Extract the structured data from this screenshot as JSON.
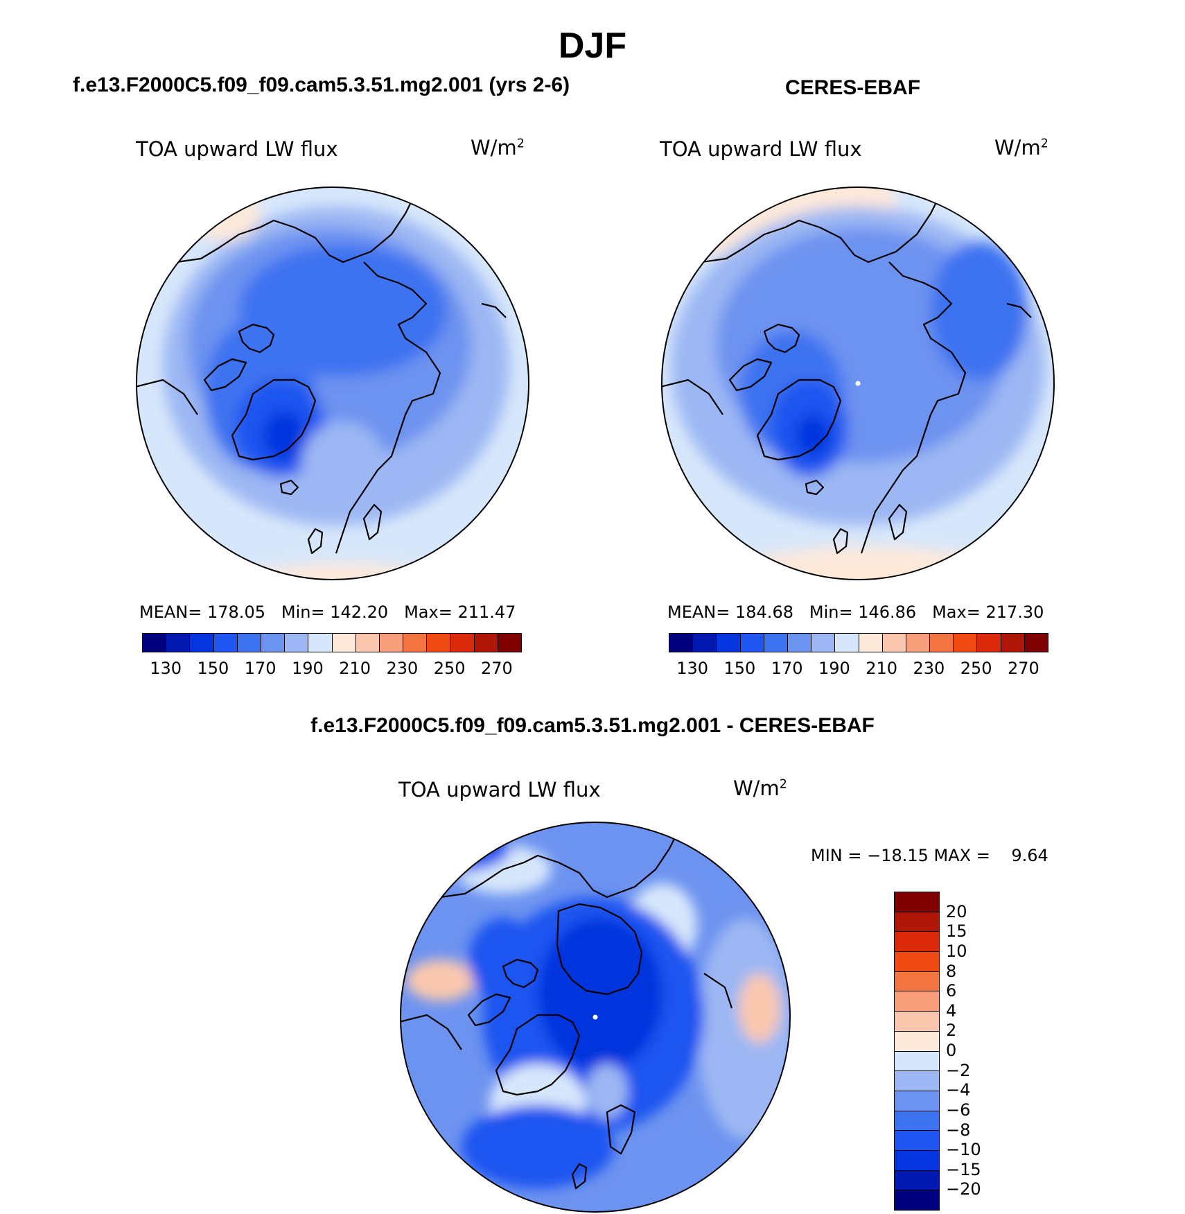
{
  "title": "DJF",
  "chart_data": [
    {
      "type": "heatmap",
      "projection": "north polar stereographic",
      "title": "f.e13.F2000C5.f09_f09.cam5.3.51.mg2.001 (yrs 2-6)",
      "variable": "TOA upward LW flux",
      "units": "W/m",
      "units_sup": "2",
      "stats": {
        "mean_label": "MEAN=",
        "mean": "178.05",
        "min_label": "Min=",
        "min": "142.20",
        "max_label": "Max=",
        "max": "211.47"
      },
      "colorbar": {
        "colors": [
          "#00007f",
          "#0019b0",
          "#0535de",
          "#1f55f0",
          "#3d72f0",
          "#6d93f0",
          "#9cb7f3",
          "#d7e7fb",
          "#fde9da",
          "#fac7ae",
          "#f79e7b",
          "#f2743e",
          "#ef4a12",
          "#d9290a",
          "#b01606",
          "#7f0000"
        ],
        "ticks": [
          "130",
          "150",
          "170",
          "190",
          "210",
          "230",
          "250",
          "270"
        ]
      }
    },
    {
      "type": "heatmap",
      "projection": "north polar stereographic",
      "title": "CERES-EBAF",
      "variable": "TOA upward LW flux",
      "units": "W/m",
      "units_sup": "2",
      "stats": {
        "mean_label": "MEAN=",
        "mean": "184.68",
        "min_label": "Min=",
        "min": "146.86",
        "max_label": "Max=",
        "max": "217.30"
      },
      "colorbar": {
        "colors": [
          "#00007f",
          "#0019b0",
          "#0535de",
          "#1f55f0",
          "#3d72f0",
          "#6d93f0",
          "#9cb7f3",
          "#d7e7fb",
          "#fde9da",
          "#fac7ae",
          "#f79e7b",
          "#f2743e",
          "#ef4a12",
          "#d9290a",
          "#b01606",
          "#7f0000"
        ],
        "ticks": [
          "130",
          "150",
          "170",
          "190",
          "210",
          "230",
          "250",
          "270"
        ]
      }
    },
    {
      "type": "heatmap",
      "projection": "north polar stereographic",
      "title": "f.e13.F2000C5.f09_f09.cam5.3.51.mg2.001 - CERES-EBAF",
      "variable": "TOA upward LW flux",
      "units": "W/m",
      "units_sup": "2",
      "minmax": "MIN = −18.15 MAX =    9.64",
      "colorbar": {
        "colors": [
          "#7f0000",
          "#b01606",
          "#d9290a",
          "#ef4a12",
          "#f2743e",
          "#f79e7b",
          "#fac7ae",
          "#fde9da",
          "#d7e7fb",
          "#9cb7f3",
          "#6d93f0",
          "#3d72f0",
          "#1f55f0",
          "#0535de",
          "#0019b0",
          "#00007f"
        ],
        "ticks": [
          "20",
          "15",
          "10",
          "8",
          "6",
          "4",
          "2",
          "0",
          "−2",
          "−4",
          "−6",
          "−8",
          "−10",
          "−15",
          "−20"
        ]
      }
    }
  ]
}
